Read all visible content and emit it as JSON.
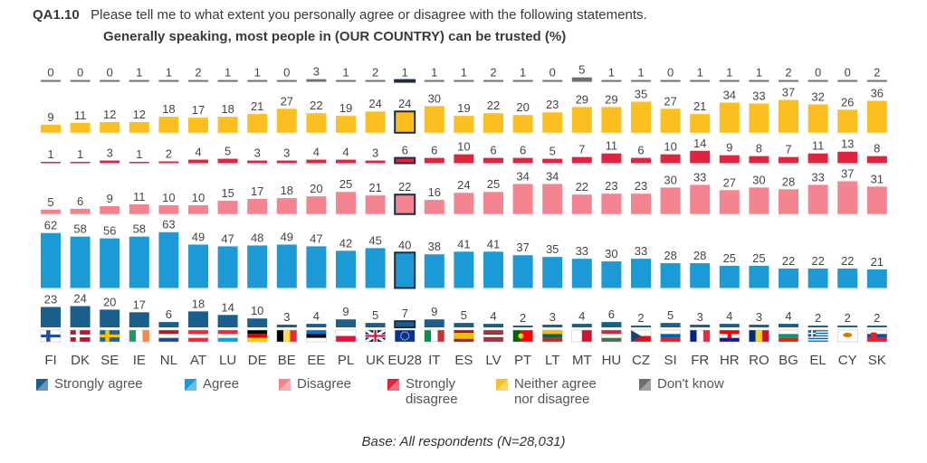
{
  "header": {
    "code": "QA1.10",
    "question": "Please tell me to what extent you personally agree or disagree with the following statements.",
    "subtitle": "Generally speaking, most people in (OUR COUNTRY) can be trusted  (%)"
  },
  "chart_data": {
    "type": "bar",
    "title": "Generally speaking, most people in (OUR COUNTRY) can be trusted  (%)",
    "categories": [
      "FI",
      "DK",
      "SE",
      "IE",
      "NL",
      "AT",
      "LU",
      "DE",
      "BE",
      "EE",
      "PL",
      "UK",
      "EU28",
      "IT",
      "ES",
      "LV",
      "PT",
      "LT",
      "MT",
      "HU",
      "CZ",
      "SI",
      "FR",
      "HR",
      "RO",
      "BG",
      "EL",
      "CY",
      "SK"
    ],
    "highlight": "EU28",
    "series": [
      {
        "name": "Strongly agree",
        "color": "#1a5e8c",
        "values": [
          23,
          24,
          20,
          17,
          6,
          18,
          14,
          10,
          3,
          4,
          9,
          5,
          7,
          9,
          5,
          4,
          2,
          3,
          4,
          6,
          2,
          5,
          3,
          4,
          3,
          4,
          2,
          2,
          2
        ]
      },
      {
        "name": "Agree",
        "color": "#1b9ad6",
        "values": [
          62,
          58,
          56,
          58,
          63,
          49,
          47,
          48,
          49,
          47,
          42,
          45,
          40,
          38,
          41,
          41,
          37,
          35,
          33,
          30,
          33,
          28,
          28,
          25,
          25,
          22,
          22,
          22,
          21
        ]
      },
      {
        "name": "Disagree",
        "color": "#f2858f",
        "values": [
          5,
          6,
          9,
          11,
          10,
          10,
          15,
          17,
          18,
          20,
          25,
          21,
          22,
          16,
          24,
          25,
          34,
          34,
          22,
          23,
          23,
          30,
          33,
          27,
          30,
          28,
          33,
          37,
          31
        ]
      },
      {
        "name": "Strongly disagree",
        "color": "#e0233f",
        "values": [
          1,
          1,
          3,
          1,
          2,
          4,
          5,
          3,
          3,
          4,
          4,
          3,
          6,
          6,
          10,
          6,
          6,
          5,
          7,
          11,
          6,
          10,
          14,
          9,
          8,
          7,
          11,
          13,
          8
        ]
      },
      {
        "name": "Neither agree nor disagree",
        "color": "#fbbf1f",
        "values": [
          9,
          11,
          12,
          12,
          18,
          17,
          18,
          21,
          27,
          22,
          19,
          24,
          24,
          30,
          19,
          22,
          20,
          23,
          29,
          29,
          35,
          27,
          21,
          34,
          33,
          37,
          32,
          26,
          36
        ]
      },
      {
        "name": "Don't know",
        "color": "#6f6f6f",
        "values": [
          0,
          0,
          0,
          1,
          1,
          2,
          1,
          1,
          0,
          3,
          1,
          2,
          1,
          1,
          1,
          2,
          1,
          0,
          5,
          1,
          1,
          0,
          1,
          1,
          1,
          2,
          0,
          0,
          2
        ]
      }
    ],
    "flags": [
      "FI",
      "DK",
      "SE",
      "IE",
      "NL",
      "AT",
      "LU",
      "DE",
      "BE",
      "EE",
      "PL",
      "UK",
      "EU28",
      "IT",
      "ES",
      "LV",
      "PT",
      "LT",
      "MT",
      "HU",
      "CZ",
      "SI",
      "FR",
      "HR",
      "RO",
      "BG",
      "EL",
      "CY",
      "SK"
    ]
  },
  "legend": [
    {
      "label": "Strongly agree",
      "color": "#1a5e8c"
    },
    {
      "label": "Agree",
      "color": "#1b9ad6"
    },
    {
      "label": "Disagree",
      "color": "#f2858f"
    },
    {
      "label": "Strongly\ndisagree",
      "color": "#e0233f"
    },
    {
      "label": "Neither agree\nnor disagree",
      "color": "#fbbf1f"
    },
    {
      "label": "Don't know",
      "color": "#6f6f6f"
    }
  ],
  "base_note": "Base: All respondents (N=28,031)"
}
